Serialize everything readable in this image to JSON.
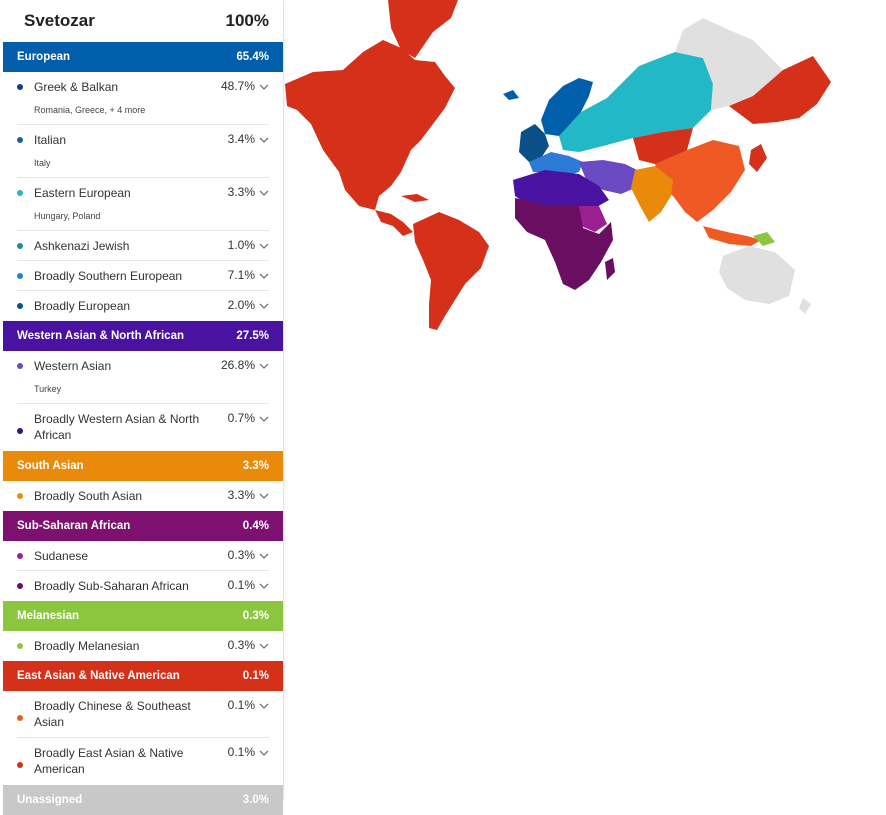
{
  "header": {
    "name": "Svetozar",
    "total": "100%"
  },
  "categories": [
    {
      "label": "European",
      "pct": "65.4%",
      "color": "#005eab",
      "items": [
        {
          "label": "Greek & Balkan",
          "pct": "48.7%",
          "sub": "Romania, Greece, + 4 more",
          "color": "#0b3d91"
        },
        {
          "label": "Italian",
          "pct": "3.4%",
          "sub": "Italy",
          "color": "#1f5da8"
        },
        {
          "label": "Eastern European",
          "pct": "3.3%",
          "sub": "Hungary, Poland",
          "color": "#22b8c6"
        },
        {
          "label": "Ashkenazi Jewish",
          "pct": "1.0%",
          "color": "#1a8f97"
        },
        {
          "label": "Broadly Southern European",
          "pct": "7.1%",
          "color": "#2c7bd6"
        },
        {
          "label": "Broadly European",
          "pct": "2.0%",
          "color": "#0a4f86"
        }
      ]
    },
    {
      "label": "Western Asian & North African",
      "pct": "27.5%",
      "color": "#4a12a0",
      "items": [
        {
          "label": "Western Asian",
          "pct": "26.8%",
          "sub": "Turkey",
          "color": "#6a4bc4"
        },
        {
          "label": "Broadly Western Asian & North African",
          "pct": "0.7%",
          "color": "#3d0e8c"
        }
      ]
    },
    {
      "label": "South Asian",
      "pct": "3.3%",
      "color": "#e98a0b",
      "items": [
        {
          "label": "Broadly South Asian",
          "pct": "3.3%",
          "color": "#e98a0b"
        }
      ]
    },
    {
      "label": "Sub-Saharan African",
      "pct": "0.4%",
      "color": "#7e1170",
      "items": [
        {
          "label": "Sudanese",
          "pct": "0.3%",
          "color": "#9b1f90"
        },
        {
          "label": "Broadly Sub-Saharan African",
          "pct": "0.1%",
          "color": "#6a0e62"
        }
      ]
    },
    {
      "label": "Melanesian",
      "pct": "0.3%",
      "color": "#8cc63f",
      "items": [
        {
          "label": "Broadly Melanesian",
          "pct": "0.3%",
          "color": "#8cc63f"
        }
      ]
    },
    {
      "label": "East Asian & Native American",
      "pct": "0.1%",
      "color": "#d4301a",
      "items": [
        {
          "label": "Broadly Chinese & Southeast Asian",
          "pct": "0.1%",
          "color": "#ef5a24"
        },
        {
          "label": "Broadly East Asian & Native American",
          "pct": "0.1%",
          "color": "#d4301a"
        }
      ]
    },
    {
      "label": "Unassigned",
      "pct": "3.0%",
      "color": "#c8c8c8",
      "items": []
    }
  ]
}
